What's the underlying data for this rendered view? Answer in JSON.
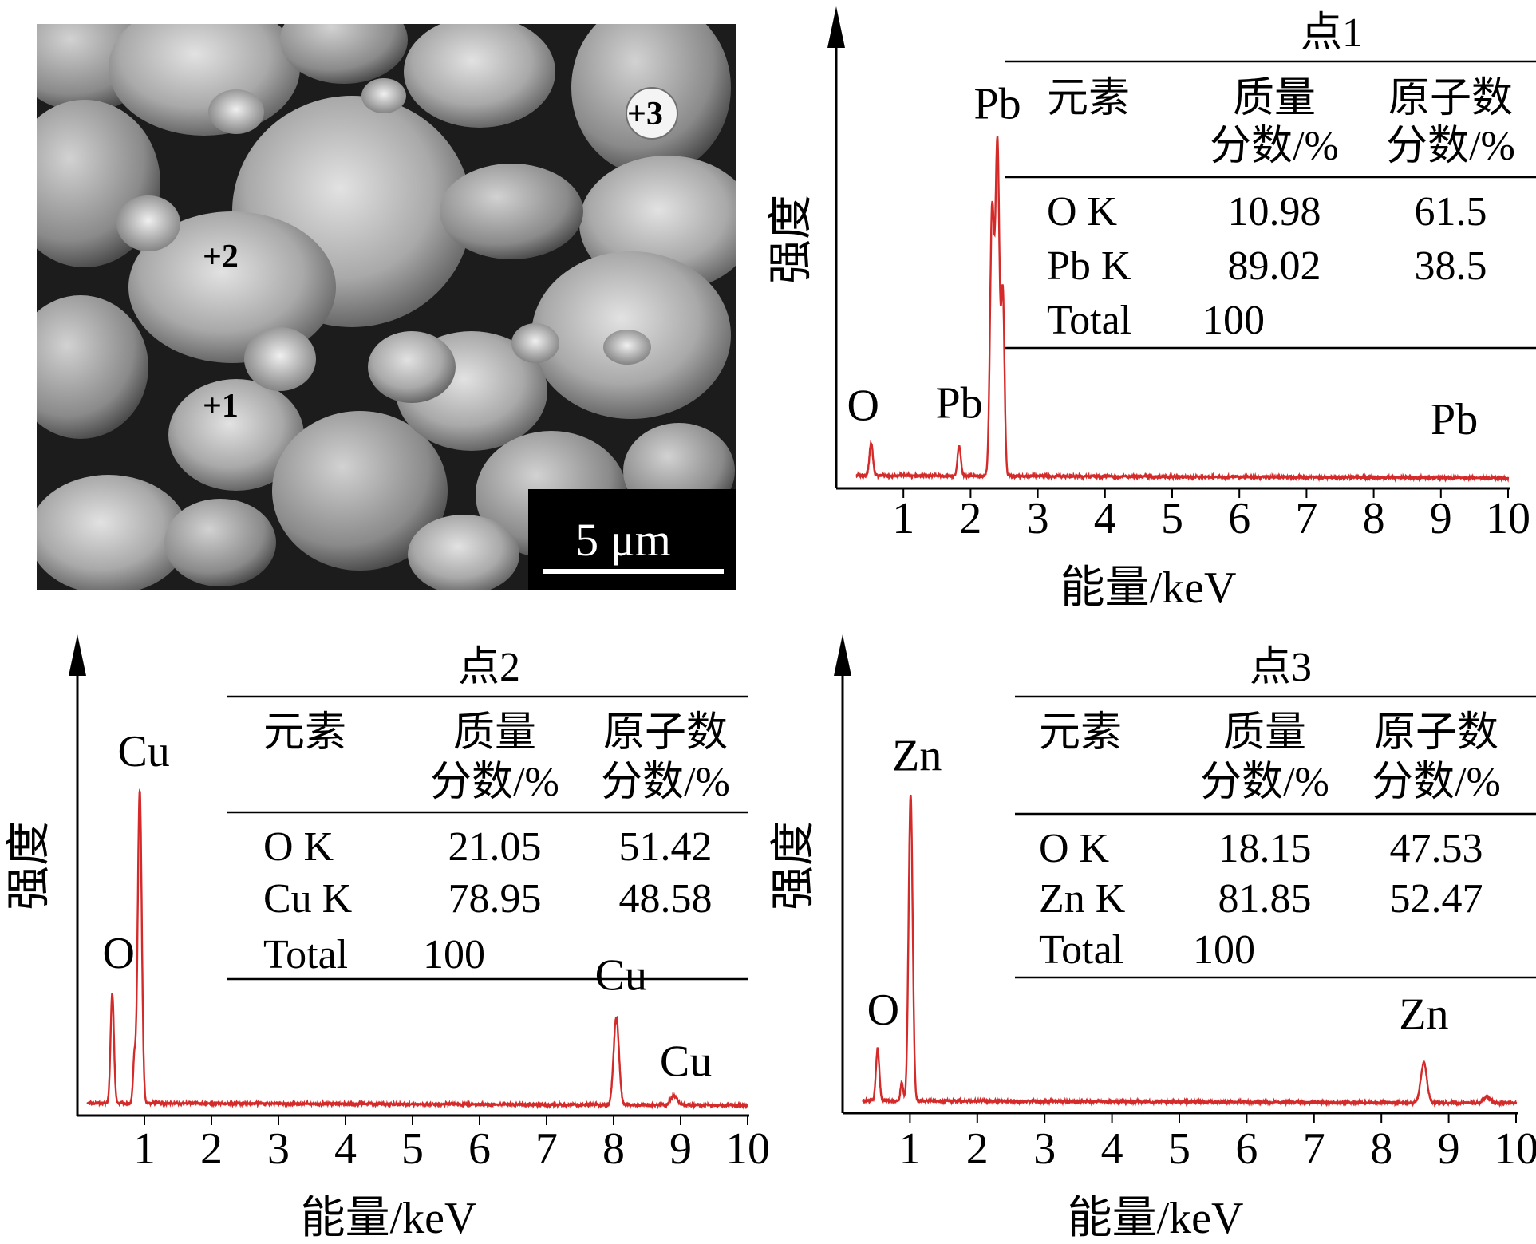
{
  "sem": {
    "markers": [
      "+1",
      "+2",
      "+3"
    ],
    "scale_label": "5 μm"
  },
  "table_headers": {
    "element": "元素",
    "mass_line1": "质量",
    "mass_line2": "分数/%",
    "atomic_line1": "原子数",
    "atomic_line2": "分数/%"
  },
  "colors": {
    "spectrum": "#d42a2a",
    "axis": "#000000",
    "sem_dark": "#1a1a1a",
    "sem_light": "#d9d9d9"
  },
  "chart_data": [
    {
      "type": "line",
      "point": "点1",
      "xlabel": "能量/keV",
      "ylabel": "强度",
      "xlim": [
        0.3,
        10
      ],
      "x_ticks": [
        1,
        2,
        3,
        4,
        5,
        6,
        7,
        8,
        9,
        10
      ],
      "baseline": 0.02,
      "peaks": [
        {
          "x": 0.52,
          "h": 0.1,
          "w": 0.025,
          "label": "O"
        },
        {
          "x": 1.83,
          "h": 0.09,
          "w": 0.025,
          "label": "Pb"
        },
        {
          "x": 2.32,
          "h": 0.8,
          "w": 0.03
        },
        {
          "x": 2.4,
          "h": 1.0,
          "w": 0.03,
          "label": "Pb"
        },
        {
          "x": 2.48,
          "h": 0.55,
          "w": 0.025
        },
        {
          "x": 9.2,
          "h": 0.0,
          "w": 0.03,
          "label": "Pb"
        }
      ],
      "table": {
        "rows": [
          {
            "element": "O K",
            "mass": "10.98",
            "atomic": "61.5"
          },
          {
            "element": "Pb K",
            "mass": "89.02",
            "atomic": "38.5"
          },
          {
            "element": "Total",
            "mass": "100",
            "atomic": ""
          }
        ]
      }
    },
    {
      "type": "line",
      "point": "点2",
      "xlabel": "能量/keV",
      "ylabel": "强度",
      "xlim": [
        0.15,
        10
      ],
      "x_ticks": [
        1,
        2,
        3,
        4,
        5,
        6,
        7,
        8,
        9,
        10
      ],
      "baseline": 0.02,
      "peaks": [
        {
          "x": 0.52,
          "h": 0.35,
          "w": 0.025,
          "label": "O"
        },
        {
          "x": 0.85,
          "h": 0.14,
          "w": 0.02
        },
        {
          "x": 0.93,
          "h": 1.0,
          "w": 0.03,
          "label": "Cu"
        },
        {
          "x": 8.04,
          "h": 0.28,
          "w": 0.04,
          "label": "Cu"
        },
        {
          "x": 8.9,
          "h": 0.03,
          "w": 0.05,
          "label": "Cu"
        }
      ],
      "table": {
        "rows": [
          {
            "element": "O K",
            "mass": "21.05",
            "atomic": "51.42"
          },
          {
            "element": "Cu K",
            "mass": "78.95",
            "atomic": "48.58"
          },
          {
            "element": "Total",
            "mass": "100",
            "atomic": ""
          }
        ]
      }
    },
    {
      "type": "line",
      "point": "点3",
      "xlabel": "能量/keV",
      "ylabel": "强度",
      "xlim": [
        0.3,
        10
      ],
      "x_ticks": [
        1,
        2,
        3,
        4,
        5,
        6,
        7,
        8,
        9,
        10
      ],
      "baseline": 0.02,
      "peaks": [
        {
          "x": 0.52,
          "h": 0.17,
          "w": 0.025,
          "label": "O"
        },
        {
          "x": 0.88,
          "h": 0.06,
          "w": 0.02
        },
        {
          "x": 1.01,
          "h": 1.0,
          "w": 0.03,
          "label": "Zn"
        },
        {
          "x": 8.63,
          "h": 0.13,
          "w": 0.045,
          "label": "Zn"
        },
        {
          "x": 9.57,
          "h": 0.02,
          "w": 0.05
        }
      ],
      "table": {
        "rows": [
          {
            "element": "O K",
            "mass": "18.15",
            "atomic": "47.53"
          },
          {
            "element": "Zn K",
            "mass": "81.85",
            "atomic": "52.47"
          },
          {
            "element": "Total",
            "mass": "100",
            "atomic": ""
          }
        ]
      }
    }
  ]
}
